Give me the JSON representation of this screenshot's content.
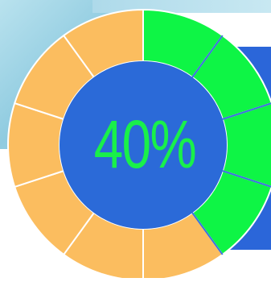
{
  "progress": {
    "percent_label": "40%",
    "value": 0.4,
    "segments_total": 10,
    "segments_filled": 4
  },
  "colors": {
    "filled": "#0ef545",
    "empty": "#fbbd5f",
    "center": "#2b6ad8",
    "text": "#19f04a",
    "separator": "#3b73dd",
    "card": "#2b66d9"
  }
}
